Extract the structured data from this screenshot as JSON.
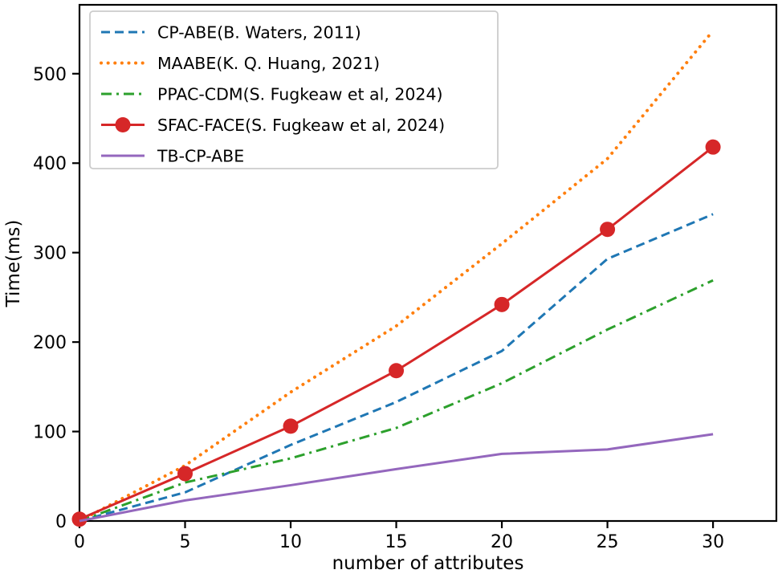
{
  "figure": {
    "background": "#ffffff",
    "spine_color": "#000000",
    "legend_border_color": "#cccccc"
  },
  "chart_data": {
    "type": "line",
    "title": "",
    "xlabel": "number of attributes",
    "ylabel": "Time(ms)",
    "x": [
      0,
      5,
      10,
      15,
      20,
      25,
      30
    ],
    "xlim": [
      0,
      33
    ],
    "ylim": [
      0,
      577
    ],
    "xticks": [
      0,
      5,
      10,
      15,
      20,
      25,
      30
    ],
    "yticks": [
      0,
      100,
      200,
      300,
      400,
      500
    ],
    "grid": false,
    "legend_position": "upper-left",
    "series": [
      {
        "name": "CP-ABE(B. Waters, 2011)",
        "color": "#1f77b4",
        "style": "dashed",
        "marker": "none",
        "values": [
          0,
          32,
          85,
          133,
          190,
          293,
          343
        ]
      },
      {
        "name": "MAABE(K. Q. Huang, 2021)",
        "color": "#ff7f0e",
        "style": "dotted",
        "marker": "none",
        "values": [
          0,
          62,
          144,
          218,
          310,
          405,
          548
        ]
      },
      {
        "name": "PPAC-CDM(S. Fugkeaw et al, 2024)",
        "color": "#2ca02c",
        "style": "dashdot",
        "marker": "none",
        "values": [
          0,
          43,
          70,
          104,
          154,
          214,
          269
        ]
      },
      {
        "name": "SFAC-FACE(S. Fugkeaw et al, 2024)",
        "color": "#d62728",
        "style": "solid",
        "marker": "circle",
        "values": [
          2,
          53,
          106,
          168,
          242,
          326,
          418
        ]
      },
      {
        "name": "TB-CP-ABE",
        "color": "#9467bd",
        "style": "solid",
        "marker": "none",
        "values": [
          0,
          23,
          40,
          58,
          75,
          80,
          97
        ]
      }
    ]
  }
}
